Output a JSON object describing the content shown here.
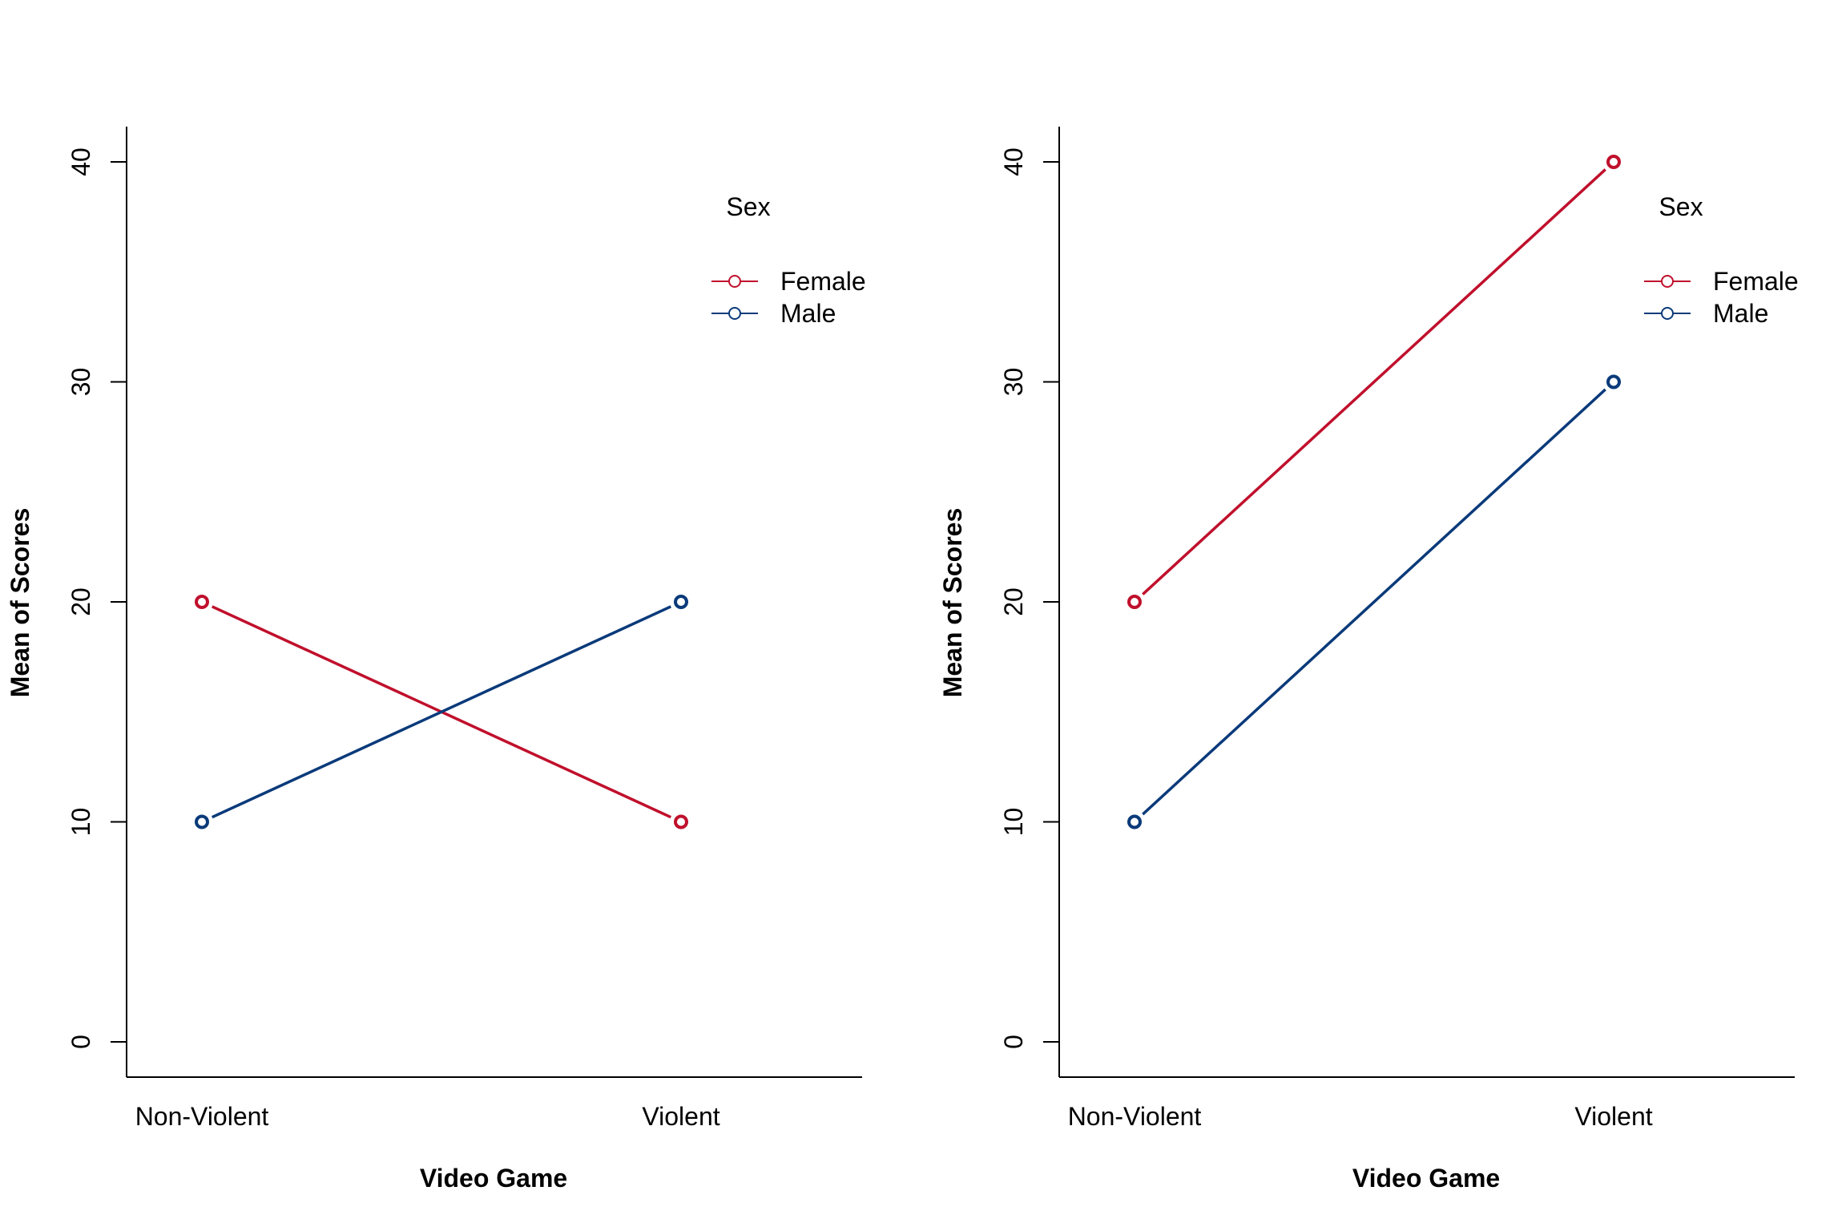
{
  "colors": {
    "female": "#C0102C",
    "male": "#0A3A7A"
  },
  "chart_data": [
    {
      "type": "line",
      "title": "",
      "xlabel": "Video Game",
      "ylabel": "Mean of Scores",
      "categories": [
        "Non-Violent",
        "Violent"
      ],
      "ylim": [
        0,
        40
      ],
      "yticks": [
        "0",
        "10",
        "20",
        "30",
        "40"
      ],
      "grid": false,
      "legend": {
        "title": "Sex",
        "position": "top-right",
        "entries": [
          "Female",
          "Male"
        ]
      },
      "series": [
        {
          "name": "Female",
          "color": "#C0102C",
          "values": [
            20,
            10
          ]
        },
        {
          "name": "Male",
          "color": "#0A3A7A",
          "values": [
            10,
            20
          ]
        }
      ]
    },
    {
      "type": "line",
      "title": "",
      "xlabel": "Video Game",
      "ylabel": "Mean of Scores",
      "categories": [
        "Non-Violent",
        "Violent"
      ],
      "ylim": [
        0,
        40
      ],
      "yticks": [
        "0",
        "10",
        "20",
        "30",
        "40"
      ],
      "grid": false,
      "legend": {
        "title": "Sex",
        "position": "top-right",
        "entries": [
          "Female",
          "Male"
        ]
      },
      "series": [
        {
          "name": "Female",
          "color": "#C0102C",
          "values": [
            20,
            40
          ]
        },
        {
          "name": "Male",
          "color": "#0A3A7A",
          "values": [
            10,
            30
          ]
        }
      ]
    }
  ]
}
